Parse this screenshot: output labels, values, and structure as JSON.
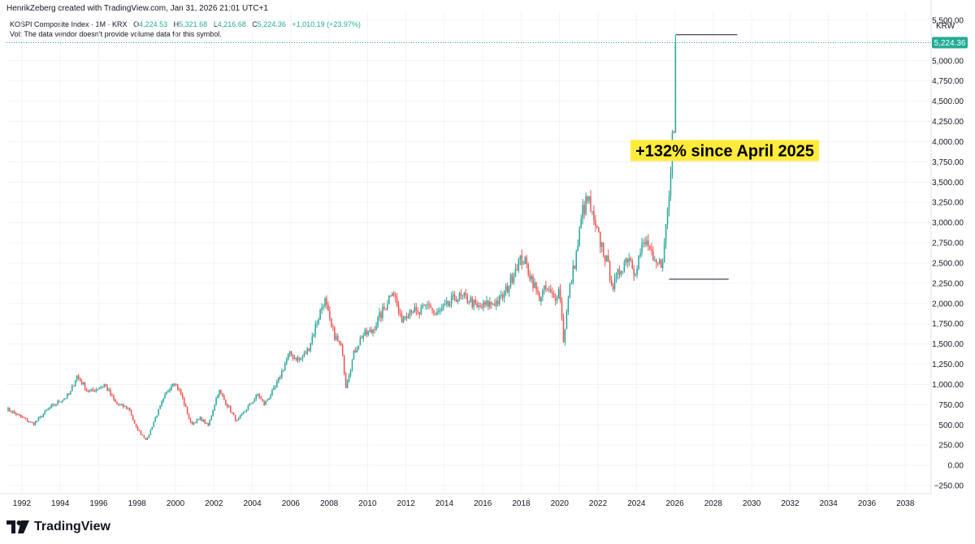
{
  "header": {
    "credit": "HenrikZeberg created with TradingView.com, Jan 31, 2026 21:01 UTC+1"
  },
  "legend": {
    "symbol": "KOSPI Composite Index · 1M · KRX",
    "o_label": "O",
    "o_value": "4,224.53",
    "h_label": "H",
    "h_value": "5,321.68",
    "l_label": "L",
    "l_value": "4,216.68",
    "c_label": "C",
    "c_value": "5,224.36",
    "change": "+1,010.19 (+23.97%)",
    "vol_note": "Vol: The data vendor doesn't provide volume data for this symbol."
  },
  "footer": {
    "brand": "TradingView"
  },
  "colors": {
    "up": "#26a69a",
    "down": "#ef5350",
    "price_tag": "#22ab94",
    "highlight": "#ffeb3b",
    "grid": "#f0f3fa"
  },
  "chart_data": {
    "type": "candlestick",
    "title": "KOSPI Composite Index · 1M · KRX",
    "currency": "KRW",
    "last_price": 5224.36,
    "last_price_label": "5,224.36",
    "ylim": [
      -350,
      5600
    ],
    "xlim": [
      1991.2,
      2039.3
    ],
    "y_ticks": [
      -250,
      0,
      250,
      500,
      750,
      1000,
      1250,
      1500,
      1750,
      2000,
      2250,
      2500,
      2750,
      3000,
      3250,
      3500,
      3750,
      4000,
      4250,
      4500,
      4750,
      5000,
      5250,
      5500
    ],
    "y_tick_labels": [
      "−250.00",
      "0.00",
      "250.00",
      "500.00",
      "750.00",
      "1,000.00",
      "1,250.00",
      "1,500.00",
      "1,750.00",
      "2,000.00",
      "2,250.00",
      "2,500.00",
      "2,750.00",
      "3,000.00",
      "3,250.00",
      "3,500.00",
      "3,750.00",
      "4,000.00",
      "4,250.00",
      "4,500.00",
      "4,750.00",
      "5,000.00",
      "5,250.00",
      "5,500.00"
    ],
    "x_ticks": [
      1992,
      1994,
      1996,
      1998,
      2000,
      2002,
      2004,
      2006,
      2008,
      2010,
      2012,
      2014,
      2016,
      2018,
      2020,
      2022,
      2024,
      2026,
      2028,
      2030,
      2032,
      2034,
      2036,
      2038
    ],
    "x_tick_labels": [
      "1992",
      "1994",
      "1996",
      "1998",
      "2000",
      "2002",
      "2004",
      "2006",
      "2008",
      "2010",
      "2012",
      "2014",
      "2016",
      "2018",
      "2020",
      "2022",
      "2024",
      "2026",
      "2028",
      "2030",
      "2032",
      "2034",
      "2036",
      "2038"
    ],
    "anchors": [
      [
        1991.2,
        700
      ],
      [
        1992.6,
        510
      ],
      [
        1993.4,
        700
      ],
      [
        1994.5,
        880
      ],
      [
        1994.85,
        1110
      ],
      [
        1995.5,
        900
      ],
      [
        1996.3,
        1000
      ],
      [
        1996.9,
        760
      ],
      [
        1997.6,
        700
      ],
      [
        1997.9,
        480
      ],
      [
        1998.5,
        310
      ],
      [
        1998.9,
        560
      ],
      [
        1999.5,
        880
      ],
      [
        1999.9,
        1050
      ],
      [
        2000.3,
        870
      ],
      [
        2000.8,
        510
      ],
      [
        2001.3,
        580
      ],
      [
        2001.7,
        490
      ],
      [
        2002.25,
        930
      ],
      [
        2002.8,
        700
      ],
      [
        2003.2,
        540
      ],
      [
        2003.8,
        730
      ],
      [
        2004.3,
        880
      ],
      [
        2004.6,
        750
      ],
      [
        2005.2,
        960
      ],
      [
        2005.9,
        1370
      ],
      [
        2006.5,
        1300
      ],
      [
        2006.9,
        1430
      ],
      [
        2007.4,
        1800
      ],
      [
        2007.75,
        2060
      ],
      [
        2008.1,
        1700
      ],
      [
        2008.7,
        1400
      ],
      [
        2008.85,
        970
      ],
      [
        2009.3,
        1390
      ],
      [
        2009.7,
        1600
      ],
      [
        2010.2,
        1650
      ],
      [
        2010.9,
        1950
      ],
      [
        2011.3,
        2200
      ],
      [
        2011.7,
        1800
      ],
      [
        2012.3,
        1950
      ],
      [
        2012.6,
        1850
      ],
      [
        2013.2,
        2000
      ],
      [
        2013.5,
        1850
      ],
      [
        2014.2,
        1980
      ],
      [
        2014.6,
        2080
      ],
      [
        2015.3,
        2050
      ],
      [
        2015.7,
        1940
      ],
      [
        2016.3,
        1990
      ],
      [
        2016.9,
        2040
      ],
      [
        2017.3,
        2200
      ],
      [
        2017.8,
        2500
      ],
      [
        2018.1,
        2550
      ],
      [
        2018.6,
        2280
      ],
      [
        2018.9,
        2070
      ],
      [
        2019.3,
        2180
      ],
      [
        2019.7,
        2060
      ],
      [
        2020.0,
        2180
      ],
      [
        2020.2,
        1550
      ],
      [
        2020.5,
        2150
      ],
      [
        2020.9,
        2650
      ],
      [
        2021.2,
        3150
      ],
      [
        2021.5,
        3290
      ],
      [
        2021.8,
        2950
      ],
      [
        2022.3,
        2650
      ],
      [
        2022.8,
        2200
      ],
      [
        2023.2,
        2450
      ],
      [
        2023.6,
        2600
      ],
      [
        2023.9,
        2400
      ],
      [
        2024.3,
        2700
      ],
      [
        2024.6,
        2750
      ],
      [
        2024.9,
        2450
      ],
      [
        2025.3,
        2500
      ],
      [
        2025.45,
        2700
      ],
      [
        2025.6,
        3150
      ],
      [
        2025.75,
        3400
      ],
      [
        2025.85,
        4100
      ],
      [
        2025.95,
        4220
      ],
      [
        2026.05,
        5224
      ]
    ],
    "annotations": [
      {
        "text": "+132% since April 2025",
        "x": 2028.6,
        "y": 3890
      },
      {
        "type": "hline",
        "x1": 2026.05,
        "x2": 2029.25,
        "y": 5321.68
      },
      {
        "type": "hline",
        "x1": 2025.7,
        "x2": 2028.8,
        "y": 2300
      }
    ]
  }
}
